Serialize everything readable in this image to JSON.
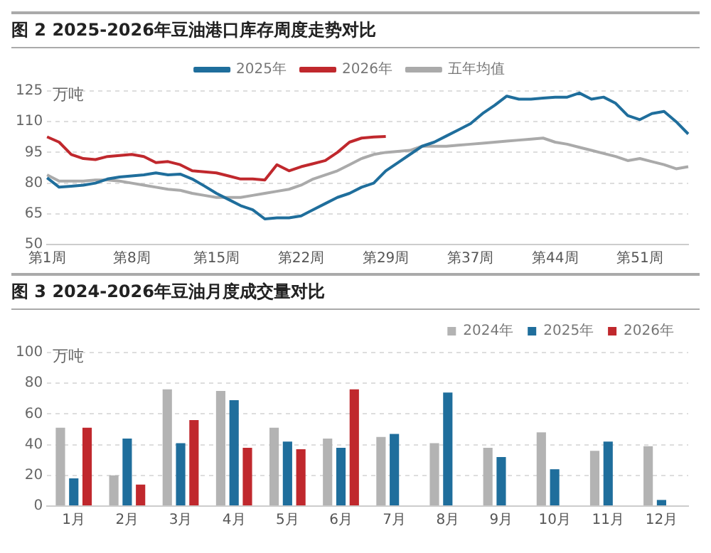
{
  "chart_data": [
    {
      "type": "line",
      "title": "图 2 2025-2026年豆油港口库存周度走势对比",
      "ylabel": "万吨",
      "categories": [
        "第1周",
        null,
        null,
        null,
        null,
        null,
        null,
        "第8周",
        null,
        null,
        null,
        null,
        null,
        null,
        "第15周",
        null,
        null,
        null,
        null,
        null,
        null,
        "第22周",
        null,
        null,
        null,
        null,
        null,
        null,
        "第29周",
        null,
        null,
        null,
        null,
        null,
        null,
        "第37周",
        null,
        null,
        null,
        null,
        null,
        null,
        "第44周",
        null,
        null,
        null,
        null,
        null,
        null,
        "第51周",
        null,
        null,
        null,
        null
      ],
      "series": [
        {
          "name": "2025年",
          "color": "#1f6e9c",
          "values": [
            82.6,
            78,
            78.5,
            79,
            80,
            82,
            83,
            83.5,
            84,
            85,
            84,
            84.4,
            82,
            78.6,
            75,
            72,
            69,
            67,
            62.5,
            63,
            63,
            64,
            67,
            70,
            73,
            75,
            78,
            80,
            86,
            90,
            94,
            98,
            100,
            103,
            106,
            109,
            114,
            118,
            122.5,
            121,
            121,
            121.5,
            122,
            122,
            124,
            121,
            122,
            119,
            113,
            111,
            114,
            115,
            110,
            104
          ]
        },
        {
          "name": "2026年",
          "color": "#c0282d",
          "values": [
            102.6,
            100,
            94,
            92,
            91.5,
            93,
            93.5,
            94,
            93,
            90,
            90.5,
            89,
            86,
            85.5,
            85,
            83.5,
            82,
            82,
            81.5,
            89,
            86,
            88,
            89.5,
            91,
            95,
            100,
            102,
            102.5,
            102.8,
            null,
            null,
            null,
            null,
            null,
            null,
            null,
            null,
            null,
            null,
            null,
            null,
            null,
            null,
            null,
            null,
            null,
            null,
            null,
            null,
            null,
            null,
            null,
            null,
            null
          ]
        },
        {
          "name": "五年均值",
          "color": "#aaaaaa",
          "values": [
            84,
            81,
            81,
            81,
            81.5,
            81.5,
            81,
            80,
            79,
            78,
            77,
            76.5,
            75,
            74,
            73,
            73,
            73,
            74,
            75,
            76,
            77,
            79,
            82,
            84,
            86,
            89,
            92,
            94,
            95,
            95.5,
            96,
            98,
            98,
            98,
            98.5,
            99,
            99.5,
            100,
            100.5,
            101,
            101.5,
            102,
            100,
            99,
            97.5,
            96,
            94.5,
            93,
            91,
            92,
            90.5,
            89,
            87,
            88
          ]
        }
      ],
      "ylim": [
        50,
        125
      ],
      "yticks": [
        50,
        65,
        80,
        95,
        110,
        125
      ],
      "grid": "y",
      "legend": "top",
      "marker": "none"
    },
    {
      "type": "bar",
      "title": "图 3 2024-2026年豆油月度成交量对比",
      "ylabel": "万吨",
      "categories": [
        "1月",
        "2月",
        "3月",
        "4月",
        "5月",
        "6月",
        "7月",
        "8月",
        "9月",
        "10月",
        "11月",
        "12月"
      ],
      "series": [
        {
          "name": "2024年",
          "color": "#b3b3b3",
          "values": [
            51,
            20,
            76,
            75,
            51,
            44,
            45,
            41,
            38,
            48,
            36,
            39
          ]
        },
        {
          "name": "2025年",
          "color": "#1f6e9c",
          "values": [
            18,
            44,
            41,
            69,
            42,
            38,
            47,
            74,
            32,
            24,
            42,
            4
          ]
        },
        {
          "name": "2026年",
          "color": "#c0282d",
          "values": [
            51,
            14,
            56,
            38,
            37,
            76,
            null,
            null,
            null,
            null,
            null,
            null
          ]
        }
      ],
      "ylim": [
        0,
        100
      ],
      "yticks": [
        0,
        20,
        40,
        60,
        80,
        100
      ],
      "grid": "y",
      "legend": "top right"
    }
  ]
}
